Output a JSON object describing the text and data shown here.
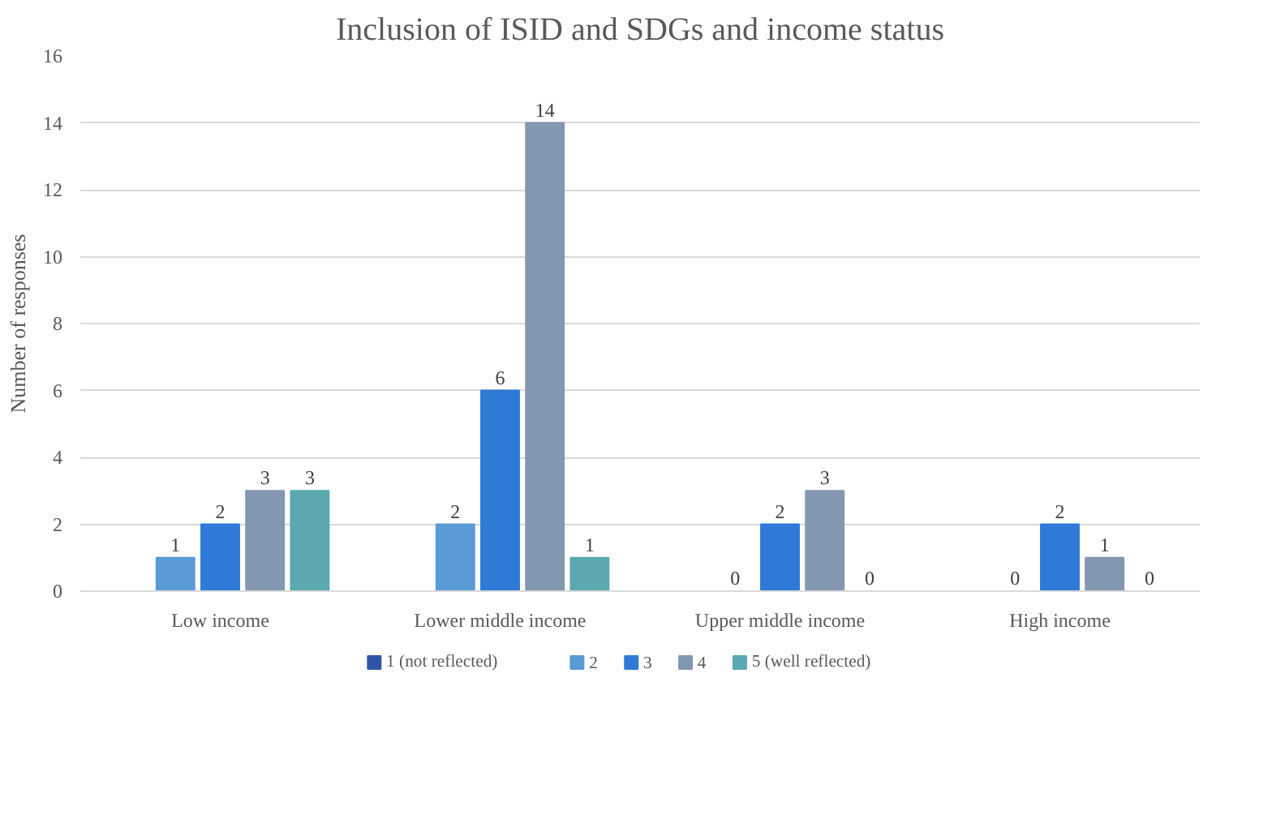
{
  "chart_data": {
    "type": "bar",
    "title": "Inclusion of ISID and SDGs and income status",
    "ylabel": "Number of responses",
    "categories": [
      "Low income",
      "Lower middle income",
      "Upper middle income",
      "High income"
    ],
    "series": [
      {
        "name": "1 (not reflected)",
        "color": "#2f55a4",
        "values": [
          0,
          0,
          0,
          0
        ],
        "value_labels": [
          null,
          null,
          null,
          null
        ]
      },
      {
        "name": "2",
        "color": "#5b9bd5",
        "values": [
          1,
          2,
          0,
          0
        ],
        "value_labels": [
          "1",
          "2",
          "0",
          "0"
        ]
      },
      {
        "name": "3",
        "color": "#2e7ad6",
        "values": [
          2,
          6,
          2,
          2
        ],
        "value_labels": [
          "2",
          "6",
          "2",
          "2"
        ]
      },
      {
        "name": "4",
        "color": "#8497b0",
        "values": [
          3,
          14,
          3,
          1
        ],
        "value_labels": [
          "3",
          "14",
          "3",
          "1"
        ]
      },
      {
        "name": "5 (well reflected)",
        "color": "#5ba8b0",
        "values": [
          3,
          1,
          0,
          0
        ],
        "value_labels": [
          "3",
          "1",
          "0",
          "0"
        ]
      }
    ],
    "ylim": [
      0,
      16
    ],
    "yticks": [
      0,
      2,
      4,
      6,
      8,
      10,
      12,
      14,
      16
    ],
    "grid": "y",
    "legend": "bottom"
  }
}
